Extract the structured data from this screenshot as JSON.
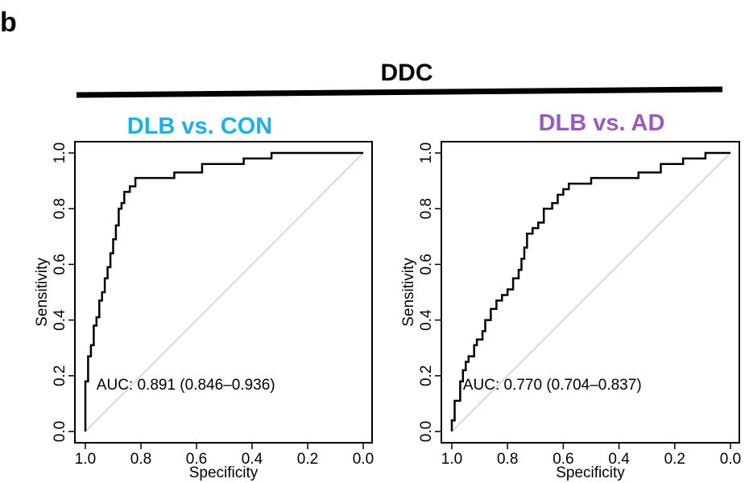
{
  "figure": {
    "panel_letter": "b",
    "group_title": "DDC"
  },
  "colors": {
    "chart_1_title": "#1ab0e8",
    "chart_2_title": "#9b59c0",
    "roc_curve": "#000000",
    "reference_line": "#bdbdbd"
  },
  "chart_data": [
    {
      "type": "line",
      "title": "DLB vs. CON",
      "xlabel": "Specificity",
      "ylabel": "Sensitivity",
      "xlim": [
        1.0,
        0.0
      ],
      "ylim": [
        0.0,
        1.0
      ],
      "x_reversed": true,
      "xticks": [
        "1.0",
        "0.8",
        "0.6",
        "0.4",
        "0.2",
        "0.0"
      ],
      "yticks": [
        "0.0",
        "0.2",
        "0.4",
        "0.6",
        "0.8",
        "1.0"
      ],
      "grid": false,
      "annotation": "AUC: 0.891 (0.846–0.936)",
      "reference_line": [
        [
          1.0,
          0.0
        ],
        [
          0.0,
          1.0
        ]
      ],
      "series": [
        {
          "x": [
            1.0,
            1.0,
            0.99,
            0.99,
            0.98,
            0.98,
            0.97,
            0.97,
            0.96,
            0.96,
            0.95,
            0.95,
            0.94,
            0.94,
            0.93,
            0.93,
            0.92,
            0.92,
            0.91,
            0.91,
            0.9,
            0.9,
            0.89,
            0.89,
            0.88,
            0.88,
            0.87,
            0.87,
            0.86,
            0.86,
            0.84,
            0.84,
            0.82,
            0.82,
            0.8,
            0.8,
            0.78,
            0.78,
            0.68,
            0.68,
            0.58,
            0.58,
            0.43,
            0.43,
            0.33,
            0.33,
            0.0
          ],
          "y": [
            0.0,
            0.18,
            0.18,
            0.27,
            0.27,
            0.31,
            0.31,
            0.38,
            0.38,
            0.41,
            0.41,
            0.47,
            0.47,
            0.5,
            0.5,
            0.55,
            0.55,
            0.59,
            0.59,
            0.64,
            0.64,
            0.69,
            0.69,
            0.74,
            0.74,
            0.8,
            0.8,
            0.82,
            0.82,
            0.86,
            0.86,
            0.88,
            0.88,
            0.91,
            0.91,
            0.91,
            0.91,
            0.91,
            0.91,
            0.93,
            0.93,
            0.96,
            0.96,
            0.98,
            0.98,
            1.0,
            1.0
          ]
        }
      ]
    },
    {
      "type": "line",
      "title": "DLB vs. AD",
      "xlabel": "Specificity",
      "ylabel": "Sensitivity",
      "xlim": [
        1.0,
        0.0
      ],
      "ylim": [
        0.0,
        1.0
      ],
      "x_reversed": true,
      "xticks": [
        "1.0",
        "0.8",
        "0.6",
        "0.4",
        "0.2",
        "0.0"
      ],
      "yticks": [
        "0.0",
        "0.2",
        "0.4",
        "0.6",
        "0.8",
        "1.0"
      ],
      "grid": false,
      "annotation": "AUC: 0.770 (0.704–0.837)",
      "reference_line": [
        [
          1.0,
          0.0
        ],
        [
          0.0,
          1.0
        ]
      ],
      "series": [
        {
          "x": [
            1.0,
            1.0,
            0.99,
            0.99,
            0.97,
            0.97,
            0.96,
            0.96,
            0.95,
            0.95,
            0.94,
            0.94,
            0.92,
            0.92,
            0.91,
            0.91,
            0.89,
            0.89,
            0.88,
            0.88,
            0.86,
            0.86,
            0.84,
            0.84,
            0.82,
            0.82,
            0.8,
            0.8,
            0.78,
            0.78,
            0.76,
            0.76,
            0.75,
            0.75,
            0.74,
            0.74,
            0.73,
            0.73,
            0.71,
            0.71,
            0.69,
            0.69,
            0.67,
            0.67,
            0.64,
            0.64,
            0.62,
            0.62,
            0.6,
            0.6,
            0.58,
            0.58,
            0.5,
            0.5,
            0.33,
            0.33,
            0.25,
            0.25,
            0.17,
            0.17,
            0.09,
            0.09,
            0.0
          ],
          "y": [
            0.0,
            0.04,
            0.04,
            0.11,
            0.11,
            0.18,
            0.18,
            0.22,
            0.22,
            0.25,
            0.25,
            0.27,
            0.27,
            0.31,
            0.31,
            0.33,
            0.33,
            0.36,
            0.36,
            0.4,
            0.4,
            0.44,
            0.44,
            0.47,
            0.47,
            0.49,
            0.49,
            0.51,
            0.51,
            0.55,
            0.55,
            0.58,
            0.58,
            0.62,
            0.62,
            0.66,
            0.66,
            0.71,
            0.71,
            0.73,
            0.73,
            0.75,
            0.75,
            0.8,
            0.8,
            0.82,
            0.82,
            0.85,
            0.85,
            0.87,
            0.87,
            0.89,
            0.89,
            0.91,
            0.91,
            0.93,
            0.93,
            0.96,
            0.96,
            0.98,
            0.98,
            1.0,
            1.0
          ]
        }
      ]
    }
  ]
}
